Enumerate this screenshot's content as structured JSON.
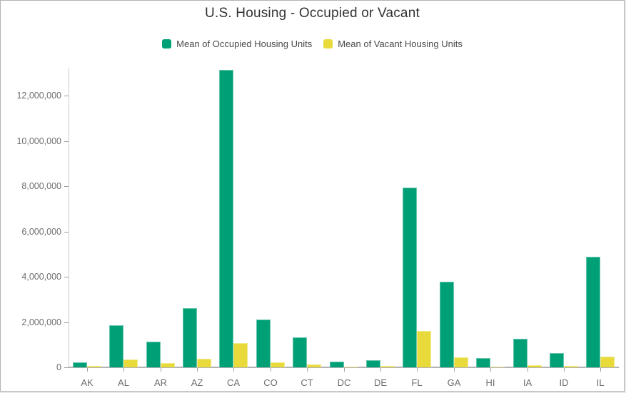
{
  "title": "U.S. Housing - Occupied or Vacant",
  "chart_data": {
    "type": "bar",
    "title": "U.S. Housing - Occupied or Vacant",
    "categories": [
      "AK",
      "AL",
      "AR",
      "AZ",
      "CA",
      "CO",
      "CT",
      "DC",
      "DE",
      "FL",
      "GA",
      "HI",
      "IA",
      "ID",
      "IL"
    ],
    "series": [
      {
        "name": "Mean of Occupied Housing Units",
        "color": "#00a077",
        "values": [
          220000,
          1860000,
          1130000,
          2620000,
          13120000,
          2120000,
          1330000,
          240000,
          315000,
          7930000,
          3790000,
          410000,
          1250000,
          620000,
          4870000
        ]
      },
      {
        "name": "Mean of Vacant Housing Units",
        "color": "#e8da3a",
        "values": [
          60000,
          360000,
          180000,
          375000,
          1070000,
          210000,
          120000,
          30000,
          73000,
          1600000,
          440000,
          45000,
          105000,
          73000,
          480000
        ]
      }
    ],
    "xlabel": "",
    "ylabel": "",
    "y_axis": {
      "min": 0,
      "max": 13200000,
      "tick_step": 2000000,
      "tick_labels": [
        "0",
        "2,000,000",
        "4,000,000",
        "6,000,000",
        "8,000,000",
        "10,000,000",
        "12,000,000"
      ]
    },
    "grid": false,
    "legend_position": "top"
  }
}
